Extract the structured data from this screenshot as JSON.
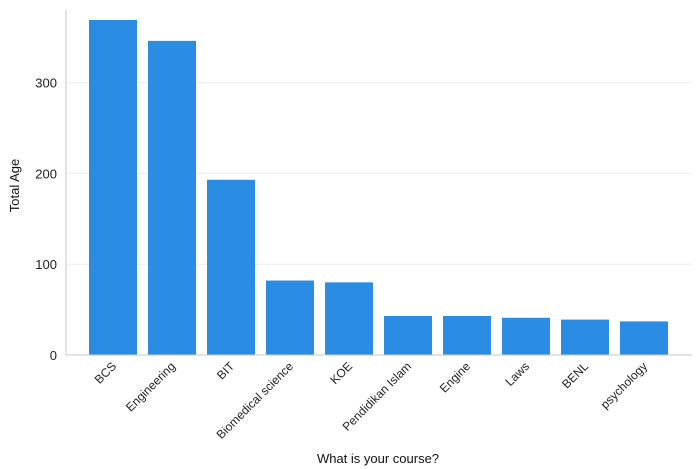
{
  "chart_data": {
    "type": "bar",
    "categories": [
      "BCS",
      "Engineering",
      "BIT",
      "Biomedical science",
      "KOE",
      "Pendidikan Islam",
      "Engine",
      "Laws",
      "BENL",
      "psychology"
    ],
    "values": [
      369,
      346,
      193,
      82,
      80,
      43,
      43,
      41,
      39,
      37
    ],
    "xlabel": "What is your course?",
    "ylabel": "Total Age",
    "ylim": [
      0,
      380
    ],
    "yticks": [
      0,
      100,
      200,
      300
    ],
    "grid": true,
    "bar_color": "#2a8ce2"
  }
}
